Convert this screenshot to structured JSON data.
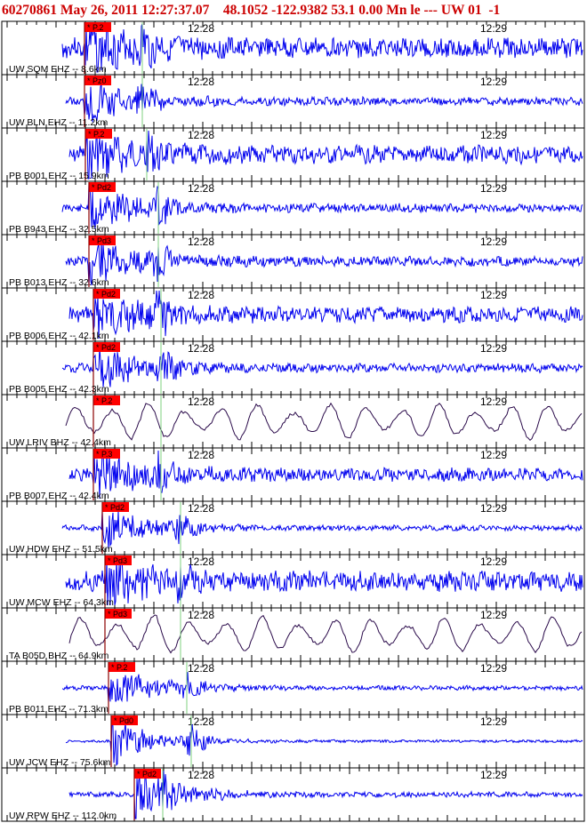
{
  "header": {
    "event_id": "60270861",
    "datetime": "May 26, 2011 12:27:37.07",
    "location": "48.1052 -122.9382 53.1 0.00 Mn le --- UW 01",
    "trailing": "-1"
  },
  "chart_data": {
    "type": "seismogram-record-section",
    "tick_labels": [
      "12:28",
      "12:29"
    ],
    "colors": {
      "trace": "#0000ee",
      "broadband_trace": "#2a0a4a",
      "pick_box": "#ff0000",
      "p_marker": "#8b0000",
      "s_marker": "#7fd07f",
      "frame": "#000000",
      "header": "#cc0000"
    },
    "traces": [
      {
        "label": "UW SQM EHZ -- 8.6km",
        "phase": "P.2",
        "amp": 0.45,
        "seed": 3,
        "smooth": false
      },
      {
        "label": "UW BLN EHZ -- 11.2km",
        "phase": "Pz0",
        "amp": 0.18,
        "seed": 5,
        "smooth": false
      },
      {
        "label": "PB B001 EHZ -- 15.9km",
        "phase": "P.2",
        "amp": 0.4,
        "seed": 7,
        "smooth": false
      },
      {
        "label": "PB B943 EHZ -- 32.5km",
        "phase": "Pd2",
        "amp": 0.2,
        "seed": 11,
        "smooth": false
      },
      {
        "label": "PB B013 EHZ -- 32.6km",
        "phase": "Pd3",
        "amp": 0.22,
        "seed": 13,
        "smooth": false
      },
      {
        "label": "PB B006 EHZ -- 42.1km",
        "phase": "Pd2",
        "amp": 0.35,
        "seed": 17,
        "smooth": false
      },
      {
        "label": "PB B005 EHZ -- 42.3km",
        "phase": "Pd2",
        "amp": 0.2,
        "seed": 19,
        "smooth": false
      },
      {
        "label": "UW LRIV BHZ -- 42.4km",
        "phase": "P.2",
        "amp": 0.55,
        "seed": 23,
        "smooth": true
      },
      {
        "label": "PB B007 EHZ -- 42.4km",
        "phase": "P.3",
        "amp": 0.3,
        "seed": 29,
        "smooth": false
      },
      {
        "label": "UW HDW EHZ -- 51.5km",
        "phase": "Pd2",
        "amp": 0.12,
        "seed": 31,
        "smooth": false
      },
      {
        "label": "UW MCW EHZ -- 64.3km",
        "phase": "Pd3",
        "amp": 0.45,
        "seed": 37,
        "smooth": false
      },
      {
        "label": "TA B05D BHZ -- 64.9km",
        "phase": "Pd3",
        "amp": 0.5,
        "seed": 41,
        "smooth": true
      },
      {
        "label": "PB B011 EHZ -- 71.3km",
        "phase": "P.2",
        "amp": 0.1,
        "seed": 43,
        "smooth": false
      },
      {
        "label": "UW JCW EHZ -- 75.6km",
        "phase": "Pd0",
        "amp": 0.06,
        "seed": 47,
        "smooth": false
      },
      {
        "label": "UW RPW EHZ -- 112.0km",
        "phase": "Pd2",
        "amp": 0.12,
        "seed": 53,
        "smooth": false
      }
    ]
  }
}
